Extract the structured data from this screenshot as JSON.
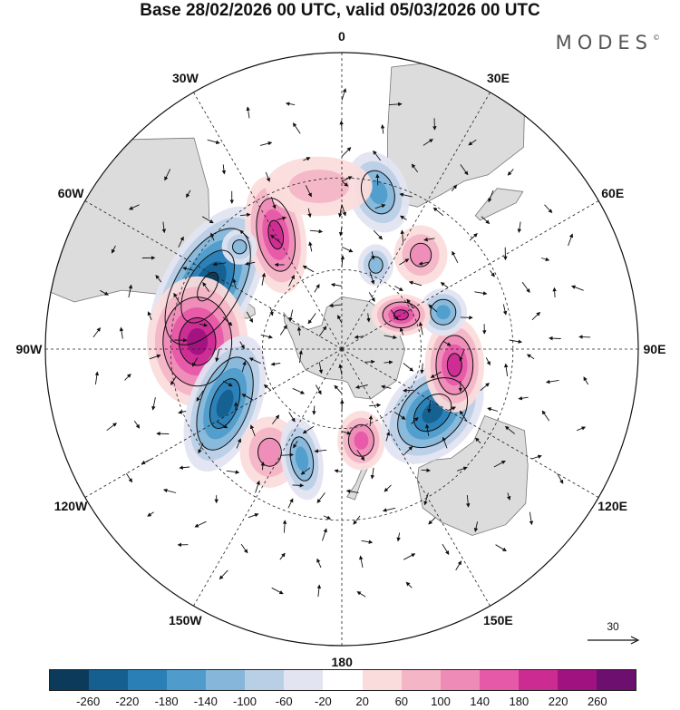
{
  "header": {
    "title": "Base 28/02/2026 00 UTC, valid 05/03/2026 00 UTC",
    "brand": "MODES",
    "brand_mark": "©"
  },
  "map": {
    "projection": "south-polar-stereographic",
    "longitude_labels": [
      {
        "text": "0",
        "lon": 0
      },
      {
        "text": "30E",
        "lon": 30
      },
      {
        "text": "60E",
        "lon": 60
      },
      {
        "text": "90E",
        "lon": 90
      },
      {
        "text": "120E",
        "lon": 120
      },
      {
        "text": "150E",
        "lon": 150
      },
      {
        "text": "180",
        "lon": 180
      },
      {
        "text": "150W",
        "lon": -150
      },
      {
        "text": "120W",
        "lon": -120
      },
      {
        "text": "90W",
        "lon": -90
      },
      {
        "text": "60W",
        "lon": -60
      },
      {
        "text": "30W",
        "lon": -30
      }
    ],
    "colors": {
      "land": "#dcdcdc",
      "coast": "#777777",
      "grid": "#222222"
    }
  },
  "vector_reference": {
    "label": "30"
  },
  "colorbar": {
    "colors": [
      "#0c3a5b",
      "#145f8f",
      "#2a7fb6",
      "#4f9ccc",
      "#86b7da",
      "#b9cfe6",
      "#e3e4f1",
      "#ffffff",
      "#fbdcdc",
      "#f4b5c6",
      "#ee8bb7",
      "#e659a8",
      "#cc2c92",
      "#a0127f",
      "#6d0f6e"
    ],
    "ticks": [
      "-260",
      "-220",
      "-180",
      "-140",
      "-100",
      "-60",
      "-20",
      "20",
      "60",
      "100",
      "140",
      "180",
      "220",
      "260"
    ]
  },
  "anomalies": [
    {
      "lon": -65,
      "lat": -37,
      "value": -260,
      "rx": 0.075,
      "ry": 0.15,
      "rot": 30
    },
    {
      "lon": -87,
      "lat": -38,
      "value": 230,
      "rx": 0.085,
      "ry": 0.11,
      "rot": 0
    },
    {
      "lon": -115,
      "lat": -43,
      "value": -220,
      "rx": 0.06,
      "ry": 0.12,
      "rot": 20
    },
    {
      "lon": -145,
      "lat": -44,
      "value": 120,
      "rx": 0.05,
      "ry": 0.06,
      "rot": 0
    },
    {
      "lon": -160,
      "lat": -47,
      "value": -140,
      "rx": 0.035,
      "ry": 0.07,
      "rot": -10
    },
    {
      "lon": 168,
      "lat": -55,
      "value": 170,
      "rx": 0.04,
      "ry": 0.05,
      "rot": 0
    },
    {
      "lon": 125,
      "lat": -49,
      "value": -220,
      "rx": 0.07,
      "ry": 0.1,
      "rot": 45
    },
    {
      "lon": 98,
      "lat": -48,
      "value": 200,
      "rx": 0.05,
      "ry": 0.08,
      "rot": 0
    },
    {
      "lon": 70,
      "lat": -50,
      "value": -160,
      "rx": 0.04,
      "ry": 0.04,
      "rot": 0
    },
    {
      "lon": 60,
      "lat": -64,
      "value": 190,
      "rx": 0.05,
      "ry": 0.035,
      "rot": 0
    },
    {
      "lon": 40,
      "lat": -45,
      "value": 120,
      "rx": 0.045,
      "ry": 0.05,
      "rot": 0
    },
    {
      "lon": 22,
      "lat": -56,
      "value": -120,
      "rx": 0.03,
      "ry": 0.035,
      "rot": 0
    },
    {
      "lon": 13,
      "lat": -33,
      "value": -140,
      "rx": 0.05,
      "ry": 0.07,
      "rot": -20
    },
    {
      "lon": -30,
      "lat": -42,
      "value": 180,
      "rx": 0.05,
      "ry": 0.1,
      "rot": -10
    },
    {
      "lon": -45,
      "lat": -38,
      "value": -100,
      "rx": 0.03,
      "ry": 0.03,
      "rot": 0
    },
    {
      "lon": -8,
      "lat": -32,
      "value": 80,
      "rx": 0.09,
      "ry": 0.05,
      "rot": 0
    }
  ]
}
